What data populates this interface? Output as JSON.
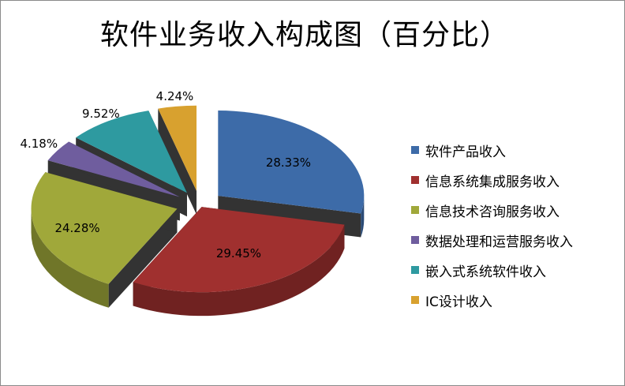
{
  "chart_data": {
    "type": "pie",
    "title": "软件业务收入构成图（百分比）",
    "categories": [
      "软件产品收入",
      "信息系统集成服务收入",
      "信息技术咨询服务收入",
      "数据处理和运营服务收入",
      "嵌入式系统软件收入",
      "IC设计收入"
    ],
    "values": [
      28.33,
      29.45,
      24.28,
      4.18,
      9.52,
      4.24
    ],
    "labels": [
      "28.33%",
      "29.45%",
      "24.28%",
      "4.18%",
      "9.52%",
      "4.24%"
    ],
    "colors": [
      "#3D6BA8",
      "#A0302F",
      "#A0A83A",
      "#6F5D9E",
      "#2E9AA0",
      "#D8A12F"
    ],
    "legend": "right",
    "style": "3d-exploded"
  }
}
